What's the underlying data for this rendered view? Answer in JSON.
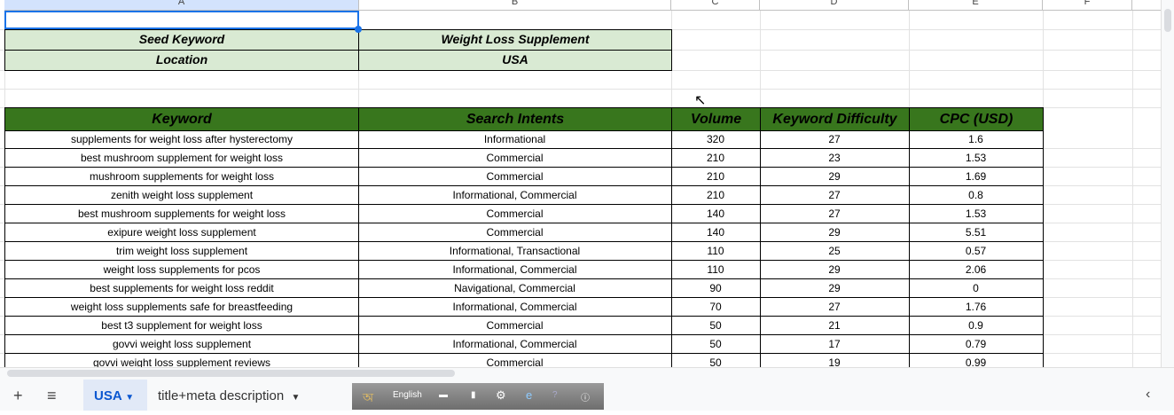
{
  "columns": [
    "A",
    "B",
    "C",
    "D",
    "E",
    "F"
  ],
  "meta": {
    "seed_label": "Seed Keyword",
    "seed_value": "Weight Loss Supplement",
    "location_label": "Location",
    "location_value": "USA"
  },
  "table": {
    "headers": [
      "Keyword",
      "Search Intents",
      "Volume",
      "Keyword Difficulty",
      "CPC (USD)"
    ],
    "rows": [
      [
        "supplements for weight loss after hysterectomy",
        "Informational",
        "320",
        "27",
        "1.6"
      ],
      [
        "best mushroom supplement for weight loss",
        "Commercial",
        "210",
        "23",
        "1.53"
      ],
      [
        "mushroom supplements for weight loss",
        "Commercial",
        "210",
        "29",
        "1.69"
      ],
      [
        "zenith weight loss supplement",
        "Informational, Commercial",
        "210",
        "27",
        "0.8"
      ],
      [
        "best mushroom supplements for weight loss",
        "Commercial",
        "140",
        "27",
        "1.53"
      ],
      [
        "exipure weight loss supplement",
        "Commercial",
        "140",
        "29",
        "5.51"
      ],
      [
        "trim weight loss supplement",
        "Informational, Transactional",
        "110",
        "25",
        "0.57"
      ],
      [
        "weight loss supplements for pcos",
        "Informational, Commercial",
        "110",
        "29",
        "2.06"
      ],
      [
        "best supplements for weight loss reddit",
        "Navigational, Commercial",
        "90",
        "29",
        "0"
      ],
      [
        "weight loss supplements safe for breastfeeding",
        "Informational, Commercial",
        "70",
        "27",
        "1.76"
      ],
      [
        "best t3 supplement for weight loss",
        "Commercial",
        "50",
        "21",
        "0.9"
      ],
      [
        "govvi weight loss supplement",
        "Informational, Commercial",
        "50",
        "17",
        "0.79"
      ],
      [
        "govvi weight loss supplement reviews",
        "Commercial",
        "50",
        "19",
        "0.99"
      ]
    ]
  },
  "sheets": {
    "add": "+",
    "menu": "≡",
    "tabs": [
      {
        "label": "USA",
        "active": true
      },
      {
        "label": "title+meta description",
        "active": false
      }
    ]
  },
  "ime_toolbar": {
    "language": "English"
  },
  "colors": {
    "header_green": "#38761d",
    "meta_green": "#d9ead3",
    "selection": "#1a73e8"
  }
}
